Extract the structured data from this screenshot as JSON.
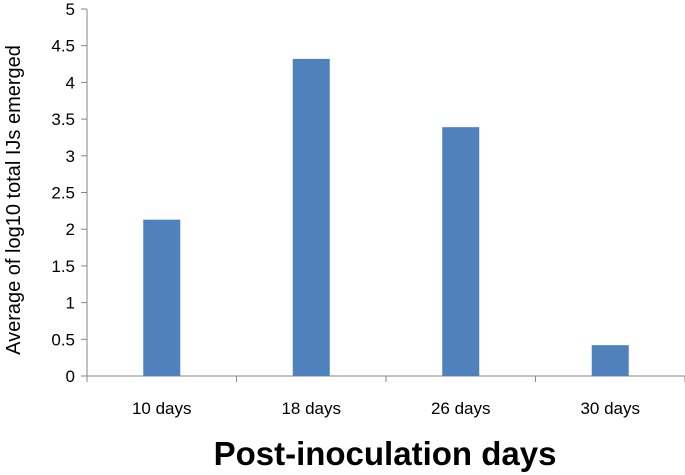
{
  "chart_data": {
    "type": "bar",
    "categories": [
      "10 days",
      "18 days",
      "26 days",
      "30 days"
    ],
    "values": [
      2.13,
      4.32,
      3.39,
      0.42
    ],
    "xlabel": "Post-inoculation days",
    "ylabel": "Average of log10 total IJs emerged",
    "ylim": [
      0,
      5
    ],
    "yticks": [
      "0",
      "0.5",
      "1",
      "1.5",
      "2",
      "2.5",
      "3",
      "3.5",
      "4",
      "4.5",
      "5"
    ],
    "bar_color": "#4f81bd",
    "axis_color": "#868686",
    "grid": false,
    "legend": "none"
  }
}
